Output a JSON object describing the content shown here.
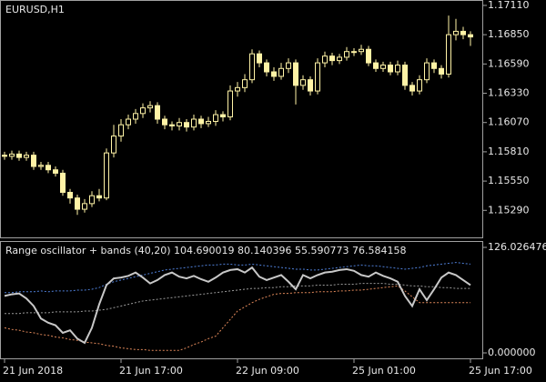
{
  "chart_data": [
    {
      "type": "candlestick",
      "title": "EURUSD,H1",
      "color": "#fff3a6",
      "ylim": [
        1.1505,
        1.1715
      ],
      "yticks": [
        {
          "value": 1.1711,
          "label": "1.17110"
        },
        {
          "value": 1.1685,
          "label": "1.16850"
        },
        {
          "value": 1.1659,
          "label": "1.16590"
        },
        {
          "value": 1.1633,
          "label": "1.16330"
        },
        {
          "value": 1.1607,
          "label": "1.16070"
        },
        {
          "value": 1.1581,
          "label": "1.15810"
        },
        {
          "value": 1.1555,
          "label": "1.15550"
        },
        {
          "value": 1.1529,
          "label": "1.15290"
        }
      ],
      "open": [
        1.1578,
        1.1577,
        1.1579,
        1.1576,
        1.1578,
        1.1568,
        1.1569,
        1.1565,
        1.1562,
        1.1545,
        1.154,
        1.153,
        1.1535,
        1.1542,
        1.154,
        1.158,
        1.1595,
        1.1605,
        1.161,
        1.1615,
        1.162,
        1.1622,
        1.161,
        1.1605,
        1.1604,
        1.1607,
        1.1603,
        1.161,
        1.1606,
        1.1608,
        1.1614,
        1.1612,
        1.1635,
        1.1638,
        1.1645,
        1.1668,
        1.166,
        1.1652,
        1.1648,
        1.1655,
        1.166,
        1.164,
        1.1645,
        1.1635,
        1.166,
        1.1666,
        1.1662,
        1.1665,
        1.167,
        1.167,
        1.1672,
        1.166,
        1.1655,
        1.1658,
        1.1652,
        1.1658,
        1.164,
        1.1635,
        1.1645,
        1.166,
        1.1655,
        1.165,
        1.1685,
        1.1688,
        1.1685
      ],
      "high": [
        1.1581,
        1.1582,
        1.1582,
        1.1581,
        1.1581,
        1.1572,
        1.1572,
        1.1568,
        1.1565,
        1.1548,
        1.1543,
        1.1539,
        1.1546,
        1.1548,
        1.1584,
        1.1605,
        1.161,
        1.1614,
        1.1619,
        1.1624,
        1.1626,
        1.1625,
        1.1613,
        1.1608,
        1.1611,
        1.161,
        1.1614,
        1.1613,
        1.1612,
        1.1618,
        1.1617,
        1.164,
        1.1643,
        1.165,
        1.1672,
        1.1671,
        1.1663,
        1.1656,
        1.166,
        1.1664,
        1.1663,
        1.1649,
        1.1648,
        1.1664,
        1.167,
        1.1669,
        1.1668,
        1.1674,
        1.1673,
        1.1676,
        1.1675,
        1.1663,
        1.1661,
        1.1661,
        1.1662,
        1.1661,
        1.1643,
        1.1649,
        1.1664,
        1.1663,
        1.1658,
        1.1702,
        1.1699,
        1.1692,
        1.1688
      ],
      "low": [
        1.1574,
        1.1574,
        1.1573,
        1.1573,
        1.1565,
        1.1565,
        1.1562,
        1.1559,
        1.1542,
        1.1535,
        1.1525,
        1.1527,
        1.1532,
        1.1537,
        1.1538,
        1.1576,
        1.159,
        1.1601,
        1.1606,
        1.1611,
        1.1616,
        1.1606,
        1.1601,
        1.16,
        1.16,
        1.1599,
        1.16,
        1.1602,
        1.1603,
        1.1604,
        1.1608,
        1.1609,
        1.163,
        1.1634,
        1.1642,
        1.1656,
        1.1648,
        1.1644,
        1.1645,
        1.1651,
        1.1623,
        1.1636,
        1.1631,
        1.1632,
        1.1656,
        1.1658,
        1.1659,
        1.1662,
        1.1666,
        1.1667,
        1.1657,
        1.1652,
        1.1652,
        1.1649,
        1.1649,
        1.1636,
        1.1631,
        1.1632,
        1.1642,
        1.1651,
        1.1646,
        1.1647,
        1.168,
        1.1681,
        1.1675
      ],
      "close": [
        1.1577,
        1.1579,
        1.1576,
        1.1578,
        1.1568,
        1.1569,
        1.1565,
        1.1562,
        1.1545,
        1.154,
        1.153,
        1.1535,
        1.1542,
        1.154,
        1.158,
        1.1595,
        1.1605,
        1.161,
        1.1615,
        1.162,
        1.1622,
        1.161,
        1.1605,
        1.1604,
        1.1607,
        1.1603,
        1.161,
        1.1606,
        1.1608,
        1.1614,
        1.1612,
        1.1635,
        1.1638,
        1.1645,
        1.1668,
        1.166,
        1.1652,
        1.1648,
        1.1655,
        1.166,
        1.164,
        1.1645,
        1.1635,
        1.166,
        1.1666,
        1.1662,
        1.1665,
        1.167,
        1.167,
        1.1672,
        1.166,
        1.1655,
        1.1658,
        1.1652,
        1.1658,
        1.164,
        1.1635,
        1.1645,
        1.166,
        1.1655,
        1.165,
        1.1685,
        1.1688,
        1.1685,
        1.1683
      ]
    },
    {
      "type": "line",
      "title": "Range oscillator + bands (40,20) 104.690019 80.140396 55.590773 76.584158",
      "categories": [
        "21 Jun 2018",
        null,
        null,
        null,
        null,
        null,
        null,
        null,
        null,
        null,
        null,
        null,
        null,
        null,
        null,
        null,
        "21 Jun 17:00",
        null,
        null,
        null,
        null,
        null,
        null,
        null,
        null,
        null,
        null,
        null,
        null,
        null,
        null,
        null,
        "22 Jun 09:00",
        null,
        null,
        null,
        null,
        null,
        null,
        null,
        null,
        null,
        null,
        null,
        null,
        null,
        null,
        null,
        "25 Jun 01:00",
        null,
        null,
        null,
        null,
        null,
        null,
        null,
        null,
        null,
        null,
        null,
        null,
        null,
        null,
        null,
        "25 Jun 17:00"
      ],
      "ylim": [
        0,
        126.026476
      ],
      "yticks": [
        126.026476,
        {
          "value": 0,
          "label": "0.000000"
        }
      ],
      "series": [
        {
          "color": "#4f7fd8",
          "style": "dotted",
          "values": [
            72,
            72,
            73,
            73,
            73,
            74,
            73,
            74,
            74,
            74,
            75,
            75,
            76,
            78,
            82,
            85,
            87,
            89,
            91,
            93,
            95,
            97,
            99,
            100,
            101,
            102,
            103,
            104,
            105,
            105,
            106,
            106,
            105,
            105,
            106,
            105,
            104,
            103,
            102,
            101,
            100,
            100,
            99,
            99,
            100,
            101,
            102,
            103,
            104,
            105,
            104,
            104,
            103,
            102,
            101,
            100,
            101,
            102,
            104,
            105,
            106,
            107,
            108,
            107,
            106
          ]
        },
        {
          "color": "#9a9a9a",
          "style": "dotted",
          "values": [
            47,
            47,
            47,
            48,
            48,
            48,
            48,
            49,
            49,
            49,
            49,
            50,
            50,
            51,
            52,
            54,
            56,
            58,
            60,
            62,
            63,
            64,
            65,
            66,
            67,
            68,
            69,
            70,
            71,
            72,
            73,
            74,
            75,
            76,
            77,
            77,
            78,
            78,
            79,
            79,
            80,
            80,
            80,
            81,
            81,
            81,
            82,
            82,
            82,
            83,
            83,
            83,
            83,
            82,
            82,
            81,
            80,
            80,
            79,
            79,
            78,
            78,
            77,
            77,
            77
          ]
        },
        {
          "color": "#e0885a",
          "style": "dotted",
          "values": [
            30,
            28,
            27,
            25,
            24,
            22,
            21,
            19,
            18,
            16,
            15,
            13,
            12,
            11,
            9,
            8,
            6,
            5,
            4,
            4,
            3,
            3,
            3,
            3,
            3,
            6,
            10,
            13,
            17,
            20,
            30,
            40,
            50,
            55,
            60,
            64,
            67,
            70,
            71,
            71,
            72,
            72,
            72,
            73,
            73,
            73,
            74,
            74,
            75,
            75,
            76,
            77,
            78,
            79,
            80,
            74,
            67,
            60,
            60,
            60,
            60,
            60,
            60,
            60,
            60
          ]
        },
        {
          "color": "#c8c8c8",
          "style": "solid",
          "values": [
            68,
            70,
            71,
            65,
            56,
            41,
            36,
            33,
            24,
            27,
            17,
            12,
            30,
            58,
            81,
            89,
            90,
            92,
            96,
            90,
            83,
            87,
            93,
            96,
            91,
            89,
            92,
            88,
            85,
            90,
            96,
            99,
            100,
            96,
            102,
            91,
            87,
            90,
            93,
            85,
            76,
            93,
            89,
            93,
            96,
            97,
            99,
            100,
            98,
            93,
            91,
            96,
            92,
            89,
            85,
            68,
            56,
            76,
            63,
            76,
            90,
            96,
            93,
            87,
            81
          ]
        }
      ]
    }
  ]
}
